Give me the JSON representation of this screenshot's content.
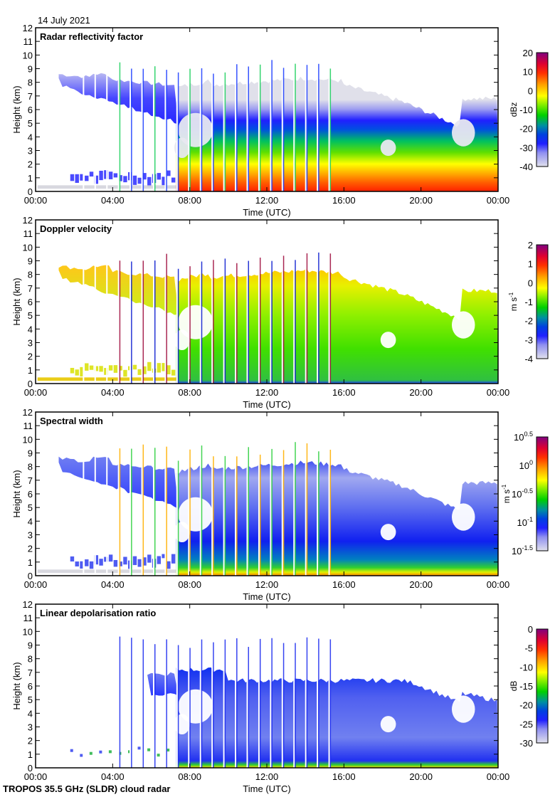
{
  "figure": {
    "date_label": "14 July 2021",
    "footer": "TROPOS 35.5 GHz (SLDR) cloud radar"
  },
  "chart_data": [
    {
      "type": "heatmap",
      "title": "Radar reflectivity factor",
      "xlabel": "Time (UTC)",
      "ylabel": "Height (km)",
      "xticks": [
        "00:00",
        "04:00",
        "08:00",
        "12:00",
        "16:00",
        "20:00",
        "00:00"
      ],
      "xlim_hours": [
        0,
        24
      ],
      "yticks": [
        "0",
        "1",
        "2",
        "3",
        "4",
        "5",
        "6",
        "7",
        "8",
        "9",
        "10",
        "11",
        "12"
      ],
      "ylim": [
        0,
        12
      ],
      "colorbar": {
        "label": "dBz",
        "ticks": [
          "20",
          "10",
          "0",
          "-10",
          "-20",
          "-30",
          "-40"
        ],
        "range": [
          -40,
          20
        ]
      },
      "field": "reflectivity"
    },
    {
      "type": "heatmap",
      "title": "Doppler velocity",
      "xlabel": "Time (UTC)",
      "ylabel": "Height (km)",
      "xticks": [
        "00:00",
        "04:00",
        "08:00",
        "12:00",
        "16:00",
        "20:00",
        "00:00"
      ],
      "xlim_hours": [
        0,
        24
      ],
      "yticks": [
        "0",
        "1",
        "2",
        "3",
        "4",
        "5",
        "6",
        "7",
        "8",
        "9",
        "10",
        "11",
        "12"
      ],
      "ylim": [
        0,
        12
      ],
      "colorbar": {
        "label_base": "m s",
        "label_exp": "-1",
        "ticks": [
          "2",
          "1",
          "0",
          "-1",
          "-2",
          "-3",
          "-4"
        ],
        "range": [
          -4,
          2
        ]
      },
      "field": "velocity"
    },
    {
      "type": "heatmap",
      "title": "Spectral width",
      "xlabel": "Time (UTC)",
      "ylabel": "Height (km)",
      "xticks": [
        "00:00",
        "04:00",
        "08:00",
        "12:00",
        "16:00",
        "20:00",
        "00:00"
      ],
      "xlim_hours": [
        0,
        24
      ],
      "yticks": [
        "0",
        "1",
        "2",
        "3",
        "4",
        "5",
        "6",
        "7",
        "8",
        "9",
        "10",
        "11",
        "12"
      ],
      "ylim": [
        0,
        12
      ],
      "colorbar": {
        "label_base": "m s",
        "label_exp": "-1",
        "ticks": [
          {
            "base": "10",
            "exp": "0.5"
          },
          {
            "base": "10",
            "exp": "0"
          },
          {
            "base": "10",
            "exp": "-0.5"
          },
          {
            "base": "10",
            "exp": "-1"
          },
          {
            "base": "10",
            "exp": "-1.5"
          }
        ],
        "range_log10": [
          -1.5,
          0.5
        ]
      },
      "field": "width"
    },
    {
      "type": "heatmap",
      "title": "Linear depolarisation ratio",
      "xlabel": "Time (UTC)",
      "ylabel": "Height (km)",
      "xticks": [
        "00:00",
        "04:00",
        "08:00",
        "12:00",
        "16:00",
        "20:00",
        "00:00"
      ],
      "xlim_hours": [
        0,
        24
      ],
      "yticks": [
        "0",
        "1",
        "2",
        "3",
        "4",
        "5",
        "6",
        "7",
        "8",
        "9",
        "10",
        "11",
        "12"
      ],
      "ylim": [
        0,
        12
      ],
      "colorbar": {
        "label": "dB",
        "ticks": [
          "0",
          "-5",
          "-10",
          "-15",
          "-20",
          "-25",
          "-30"
        ],
        "range": [
          -30,
          0
        ]
      },
      "field": "ldr"
    }
  ],
  "colors": {
    "colormap": [
      "#d8d8e8",
      "#a0a0f0",
      "#4040ff",
      "#0000ff",
      "#0060c0",
      "#00a070",
      "#00e000",
      "#80f000",
      "#ffff00",
      "#ffc000",
      "#ff8000",
      "#ff2000",
      "#e00030",
      "#800080"
    ]
  }
}
